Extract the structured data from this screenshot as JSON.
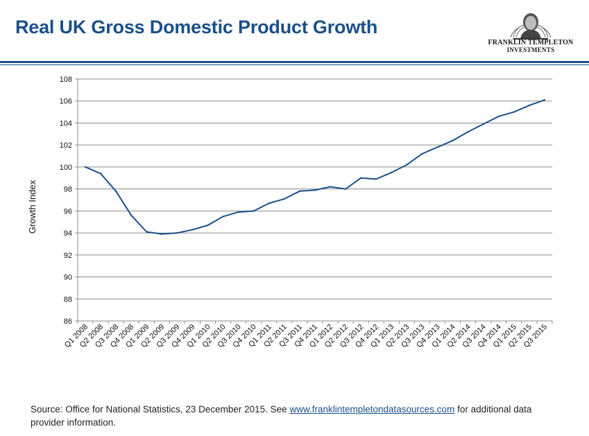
{
  "header": {
    "title": "Real UK Gross Domestic Product Growth",
    "logo_line1": "FRANKLIN TEMPLETON",
    "logo_line2": "INVESTMENTS"
  },
  "footer": {
    "text_before": "Source: Office for National Statistics,  23 December 2015. See ",
    "link": "www.franklintempletondatasources.com",
    "text_after": " for additional data provider information."
  },
  "colors": {
    "title": "#1a4f8a",
    "line": "#1a4f8a",
    "grid": "#8c8c8c"
  },
  "chart_data": {
    "type": "line",
    "title": "",
    "xlabel": "",
    "ylabel": "Growth Index",
    "ylim": [
      86,
      108
    ],
    "yticks": [
      86,
      88,
      90,
      92,
      94,
      96,
      98,
      100,
      102,
      104,
      106,
      108
    ],
    "grid": true,
    "categories": [
      "Q1 2008",
      "Q2 2008",
      "Q3 2008",
      "Q4 2008",
      "Q1 2009",
      "Q2 2009",
      "Q3 2009",
      "Q4 2009",
      "Q1 2010",
      "Q2 2010",
      "Q3 2010",
      "Q4 2010",
      "Q1 2011",
      "Q2 2011",
      "Q3 2011",
      "Q4 2011",
      "Q1 2012",
      "Q2 2012",
      "Q3 2012",
      "Q4 2012",
      "Q1 2013",
      "Q2 2013",
      "Q3 2013",
      "Q4 2013",
      "Q1 2014",
      "Q2 2014",
      "Q3 2014",
      "Q4 2014",
      "Q1 2015",
      "Q2 2015",
      "Q3 2015"
    ],
    "series": [
      {
        "values": [
          100.0,
          99.4,
          97.8,
          95.6,
          94.1,
          93.9,
          94.0,
          94.3,
          94.7,
          95.5,
          95.9,
          96.0,
          96.7,
          97.1,
          97.8,
          97.9,
          98.2,
          98.0,
          99.0,
          98.9,
          99.5,
          100.2,
          101.2,
          101.8,
          102.4,
          103.2,
          103.9,
          104.6,
          105.0,
          105.6,
          106.1
        ]
      }
    ]
  }
}
